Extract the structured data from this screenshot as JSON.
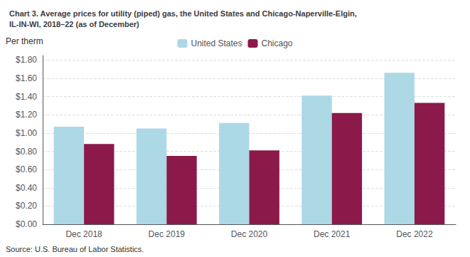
{
  "chart_data": {
    "type": "bar",
    "title": "Chart 3. Average prices for utility (piped) gas, the United States and Chicago-Naperville-Elgin,\nIL-IN-WI, 2018–22 (as of December)",
    "ylabel": "Per therm",
    "categories": [
      "Dec 2018",
      "Dec 2019",
      "Dec 2020",
      "Dec 2021",
      "Dec 2022"
    ],
    "series": [
      {
        "name": "United States",
        "color": "#add8e6",
        "values": [
          1.07,
          1.05,
          1.11,
          1.41,
          1.66
        ]
      },
      {
        "name": "Chicago",
        "color": "#8b1a4a",
        "values": [
          0.88,
          0.75,
          0.81,
          1.22,
          1.33
        ]
      }
    ],
    "ylim": [
      0,
      1.85
    ],
    "yticks": [
      {
        "value": 0.0,
        "label": "$0.00"
      },
      {
        "value": 0.2,
        "label": "$0.20"
      },
      {
        "value": 0.4,
        "label": "$0.40"
      },
      {
        "value": 0.6,
        "label": "$0.60"
      },
      {
        "value": 0.8,
        "label": "$0.80"
      },
      {
        "value": 1.0,
        "label": "$1.00"
      },
      {
        "value": 1.2,
        "label": "$1.20"
      },
      {
        "value": 1.4,
        "label": "$1.40"
      },
      {
        "value": 1.6,
        "label": "$1.60"
      },
      {
        "value": 1.8,
        "label": "$1.80"
      }
    ],
    "grid": true,
    "legend": "top",
    "annotations": [
      "Source: U.S. Bureau of Labor Statistics."
    ]
  }
}
